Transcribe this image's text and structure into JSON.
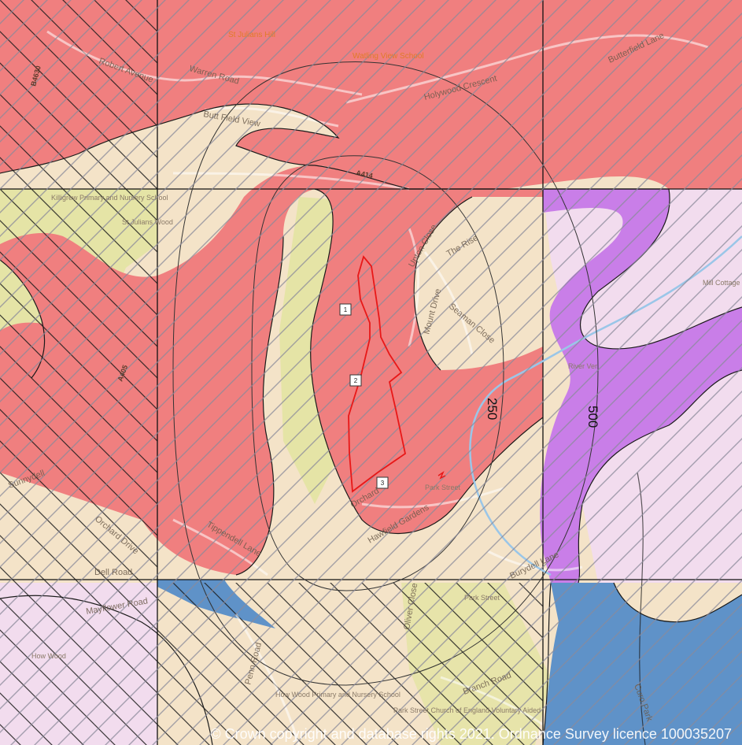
{
  "labels": {
    "st_julians_hill": "St Julians Hill",
    "watling_view_school": "Watling View School",
    "holywood_crescent": "Holywood Crescent",
    "butterfield_lane": "Butterfield Lane",
    "robert_avenue": "Robert Avenue",
    "warren_road": "Warren Road",
    "butt_field_view": "Butt Field View",
    "a414": "A414",
    "b4630": "B4630",
    "killigrew_school": "Killigrew Primary and Nursery School",
    "st_julians_wood": "St Julians Wood",
    "upton_close": "Upton Close",
    "the_rise": "The Rise",
    "mount_drive": "Mount Drive",
    "seaman_close": "Seaman Close",
    "mill_cottage": "Mill Cottage",
    "river_ver": "River Ver",
    "a405": "A405",
    "park_street": "Park Street",
    "orchard": "Orchard",
    "hawfield_gardens": "Hawfield Gardens",
    "sunnydell": "Sunnydell",
    "orchard_drive": "Orchard Drive",
    "tippendell_lane": "Tippendell Lane",
    "dell_road": "Dell Road",
    "burydell_lane": "Burydell Lane",
    "park_street_2": "Park Street",
    "mayflower_road": "Mayflower Road",
    "how_wood": "How Wood",
    "penn_road": "Penn Road",
    "oliver_close": "Oliver Close",
    "branch_road": "Branch Road",
    "curo_park": "Curo Park",
    "how_wood_school": "How Wood Primary and Nursery School",
    "park_street_church": "Park Street Church of England Voluntary Aided"
  },
  "buffers": {
    "inner": "250",
    "outer": "500"
  },
  "markers": [
    "1",
    "2",
    "3"
  ],
  "copyright": "© Crown copyright and database rights 2021. Ordnance Survey licence 100035207",
  "colors": {
    "base": "#f4e3c8",
    "red_zone": "#f07f7f",
    "cream_zone": "#f6e6c4",
    "green_zone": "#e3e3a2",
    "lilac_zone": "#f2dcee",
    "purple_zone": "#c97ee8",
    "blue_zone": "#5f92c8",
    "site_outline": "#e81818"
  }
}
